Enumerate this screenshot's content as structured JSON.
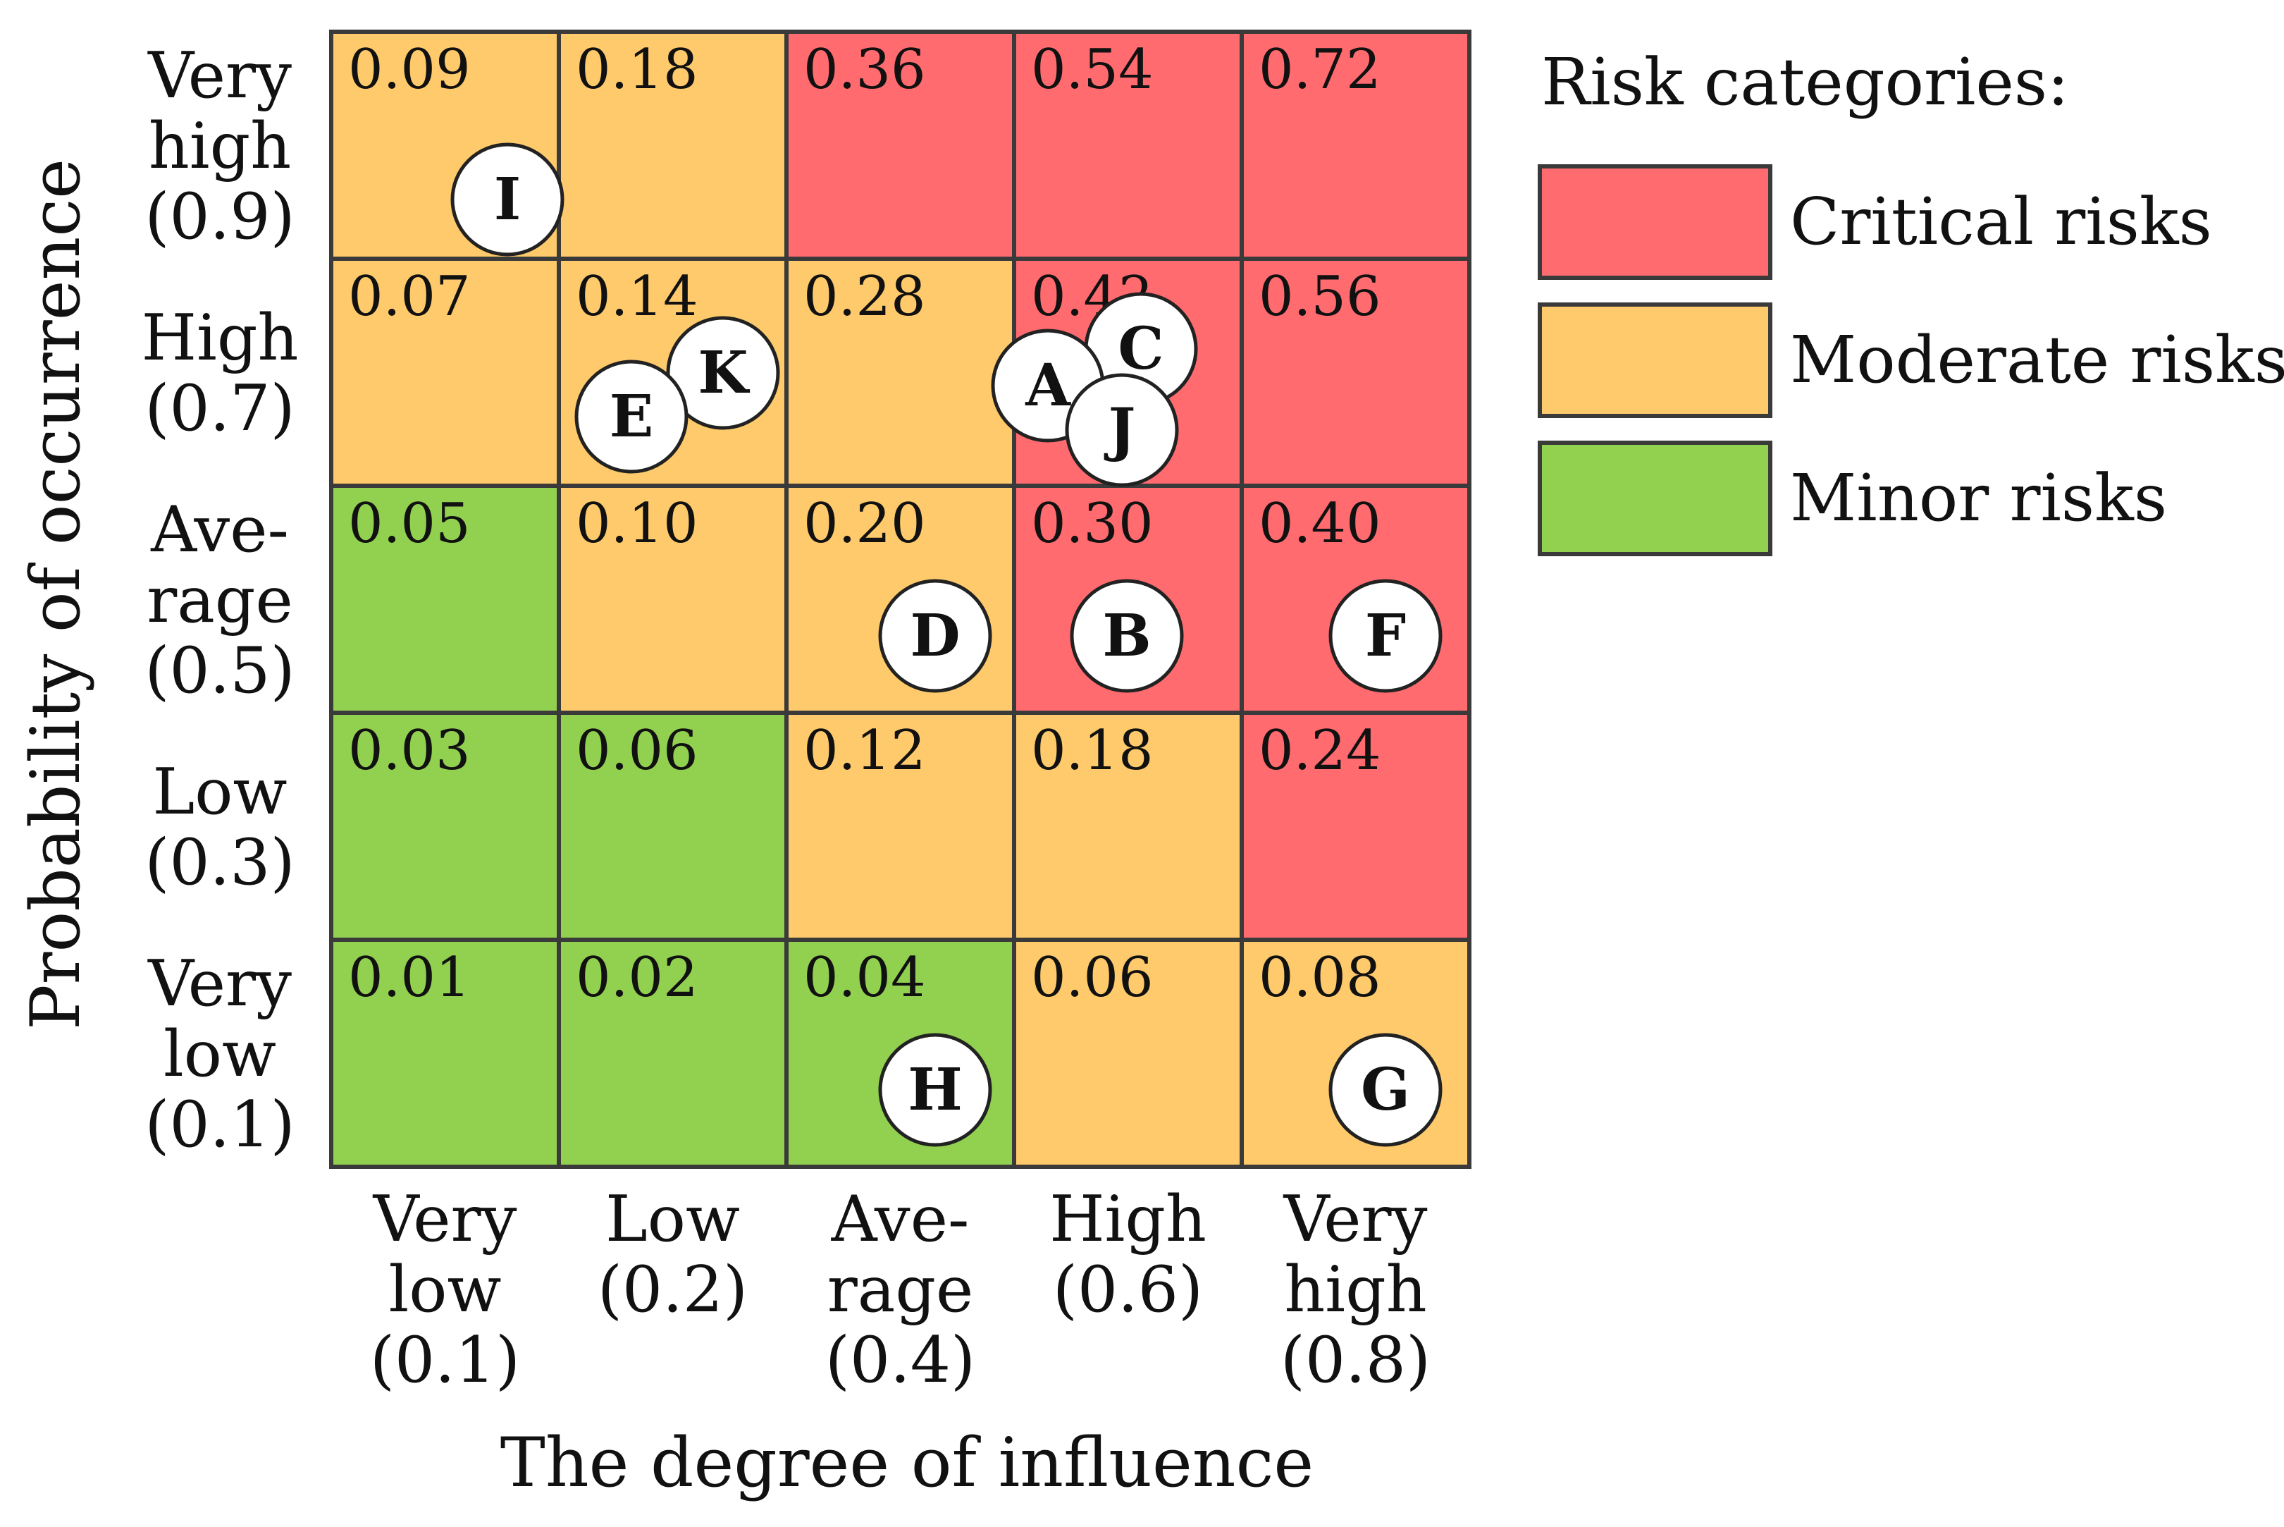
{
  "chart_data": {
    "type": "heatmap",
    "title": "",
    "xlabel": "The degree of influence",
    "ylabel": "Probability of occurrence",
    "x_categories": [
      {
        "label_lines": [
          "Very",
          "low",
          "(0.1)"
        ],
        "value": 0.1
      },
      {
        "label_lines": [
          "Low",
          "(0.2)"
        ],
        "value": 0.2
      },
      {
        "label_lines": [
          "Ave-",
          "rage",
          "(0.4)"
        ],
        "value": 0.4
      },
      {
        "label_lines": [
          "High",
          "(0.6)"
        ],
        "value": 0.6
      },
      {
        "label_lines": [
          "Very",
          "high",
          "(0.8)"
        ],
        "value": 0.8
      }
    ],
    "y_categories": [
      {
        "label_lines": [
          "Very",
          "high",
          "(0.9)"
        ],
        "value": 0.9
      },
      {
        "label_lines": [
          "High",
          "(0.7)"
        ],
        "value": 0.7
      },
      {
        "label_lines": [
          "Ave-",
          "rage",
          "(0.5)"
        ],
        "value": 0.5
      },
      {
        "label_lines": [
          "Low",
          "(0.3)"
        ],
        "value": 0.3
      },
      {
        "label_lines": [
          "Very",
          "low",
          "(0.1)"
        ],
        "value": 0.1
      }
    ],
    "cells": [
      [
        {
          "value": "0.09",
          "category": "moderate"
        },
        {
          "value": "0.18",
          "category": "moderate"
        },
        {
          "value": "0.36",
          "category": "critical"
        },
        {
          "value": "0.54",
          "category": "critical"
        },
        {
          "value": "0.72",
          "category": "critical"
        }
      ],
      [
        {
          "value": "0.07",
          "category": "moderate"
        },
        {
          "value": "0.14",
          "category": "moderate"
        },
        {
          "value": "0.28",
          "category": "moderate"
        },
        {
          "value": "0.42",
          "category": "critical"
        },
        {
          "value": "0.56",
          "category": "critical"
        }
      ],
      [
        {
          "value": "0.05",
          "category": "minor"
        },
        {
          "value": "0.10",
          "category": "moderate"
        },
        {
          "value": "0.20",
          "category": "moderate"
        },
        {
          "value": "0.30",
          "category": "critical"
        },
        {
          "value": "0.40",
          "category": "critical"
        }
      ],
      [
        {
          "value": "0.03",
          "category": "minor"
        },
        {
          "value": "0.06",
          "category": "minor"
        },
        {
          "value": "0.12",
          "category": "moderate"
        },
        {
          "value": "0.18",
          "category": "moderate"
        },
        {
          "value": "0.24",
          "category": "critical"
        }
      ],
      [
        {
          "value": "0.01",
          "category": "minor"
        },
        {
          "value": "0.02",
          "category": "minor"
        },
        {
          "value": "0.04",
          "category": "minor"
        },
        {
          "value": "0.06",
          "category": "moderate"
        },
        {
          "value": "0.08",
          "category": "moderate"
        }
      ]
    ],
    "risks": [
      {
        "label": "I",
        "influence": 0.1,
        "probability": 0.9
      },
      {
        "label": "K",
        "influence": 0.2,
        "probability": 0.7
      },
      {
        "label": "E",
        "influence": 0.2,
        "probability": 0.7
      },
      {
        "label": "C",
        "influence": 0.6,
        "probability": 0.7
      },
      {
        "label": "A",
        "influence": 0.6,
        "probability": 0.7
      },
      {
        "label": "J",
        "influence": 0.6,
        "probability": 0.7
      },
      {
        "label": "D",
        "influence": 0.4,
        "probability": 0.5
      },
      {
        "label": "B",
        "influence": 0.6,
        "probability": 0.5
      },
      {
        "label": "F",
        "influence": 0.8,
        "probability": 0.5
      },
      {
        "label": "H",
        "influence": 0.4,
        "probability": 0.1
      },
      {
        "label": "G",
        "influence": 0.8,
        "probability": 0.1
      }
    ],
    "legend": {
      "title": "Risk categories:",
      "position": "top-right",
      "items": [
        {
          "key": "critical",
          "label": "Critical risks",
          "color": "#FF6B6F"
        },
        {
          "key": "moderate",
          "label": "Moderate risks",
          "color": "#FECA6B"
        },
        {
          "key": "minor",
          "label": "Minor risks",
          "color": "#92D050"
        }
      ]
    }
  }
}
